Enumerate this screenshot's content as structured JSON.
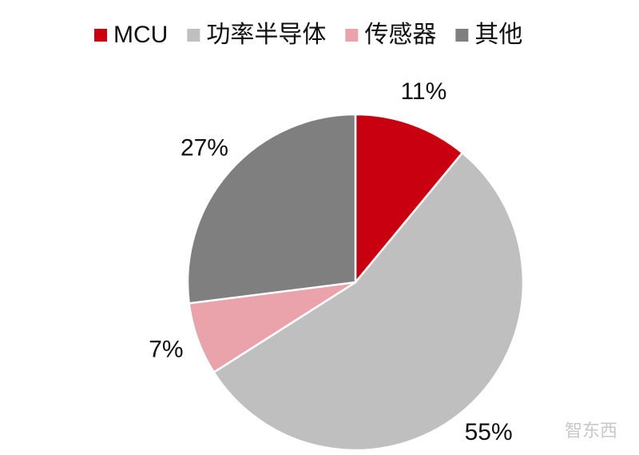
{
  "chart_data": {
    "type": "pie",
    "categories": [
      "MCU",
      "功率半导体",
      "传感器",
      "其他"
    ],
    "values": [
      11,
      55,
      7,
      27
    ],
    "value_labels": [
      "11%",
      "55%",
      "7%",
      "27%"
    ],
    "colors": [
      "#c8000f",
      "#bfbfbf",
      "#eaa2ab",
      "#7f7f7f"
    ],
    "legend": "top"
  },
  "watermark": "智东西"
}
